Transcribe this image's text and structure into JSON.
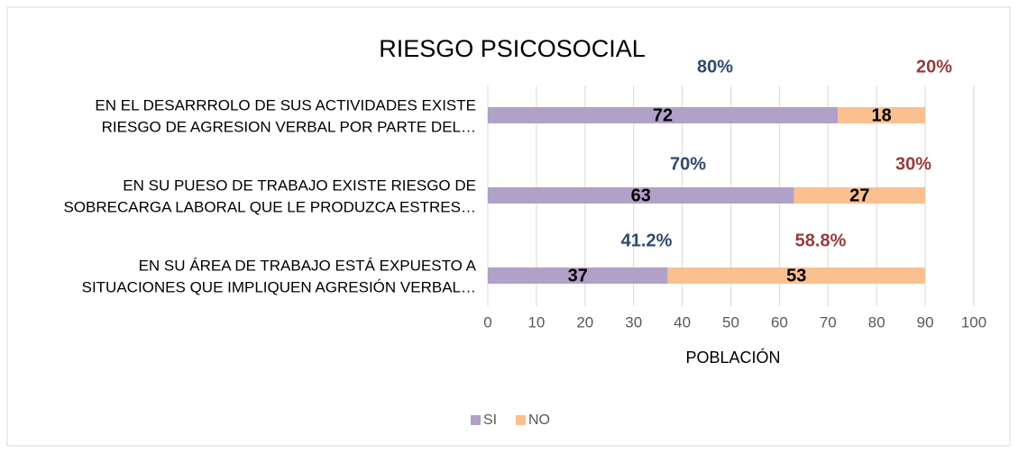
{
  "chart_data": {
    "type": "stacked-barh",
    "title": "RIESGO PSICOSOCIAL",
    "x_label": "POBLACIÓN",
    "categories": [
      [
        "EN EL DESARRROLO DE SUS ACTIVIDADES EXISTE",
        "RIESGO DE AGRESION VERBAL POR PARTE DEL…"
      ],
      [
        "EN SU PUESO DE TRABAJO EXISTE RIESGO DE",
        "SOBRECARGA LABORAL QUE LE PRODUZCA ESTRES…"
      ],
      [
        "EN SU ÁREA DE TRABAJO ESTÁ EXPUESTO A",
        "SITUACIONES QUE IMPLIQUEN AGRESIÓN VERBAL…"
      ]
    ],
    "series": [
      {
        "name": "SI",
        "color": "#b1a0c7",
        "values": [
          72,
          63,
          37
        ],
        "percent_labels": [
          "80%",
          "70%",
          "41.2%"
        ],
        "percent_color": "#2f4a6d"
      },
      {
        "name": "NO",
        "color": "#fac090",
        "values": [
          18,
          27,
          53
        ],
        "percent_labels": [
          "20%",
          "30%",
          "58.8%"
        ],
        "percent_color": "#963c3c"
      }
    ],
    "xlim": [
      0,
      100
    ],
    "xticks": [
      0,
      10,
      20,
      30,
      40,
      50,
      60,
      70,
      80,
      90,
      100
    ],
    "grid": true,
    "legend": "bottom"
  }
}
